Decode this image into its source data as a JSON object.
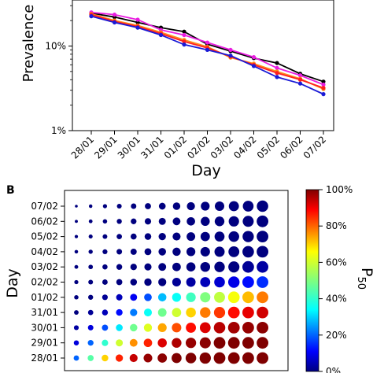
{
  "chart_data": [
    {
      "type": "line",
      "panel_label": "",
      "ylabel": "Prevalence",
      "xlabel": "Day",
      "yscale": "log",
      "ylim": [
        0.01,
        0.35
      ],
      "yticks": [
        "1%",
        "10%"
      ],
      "categories": [
        "28/01",
        "29/01",
        "30/01",
        "31/01",
        "01/02",
        "02/02",
        "03/02",
        "04/02",
        "05/02",
        "06/02",
        "07/02"
      ],
      "series": [
        {
          "color": "#000000",
          "values": [
            0.245,
            0.22,
            0.19,
            0.165,
            0.148,
            0.105,
            0.087,
            0.072,
            0.063,
            0.047,
            0.038
          ]
        },
        {
          "color": "#e91ee0",
          "values": [
            0.25,
            0.235,
            0.205,
            0.155,
            0.135,
            0.11,
            0.09,
            0.074,
            0.055,
            0.045,
            0.035
          ]
        },
        {
          "color": "#ff8c1a",
          "values": [
            0.24,
            0.2,
            0.175,
            0.145,
            0.118,
            0.098,
            0.073,
            0.062,
            0.05,
            0.041,
            0.031
          ]
        },
        {
          "color": "#ff2020",
          "values": [
            0.235,
            0.195,
            0.17,
            0.14,
            0.113,
            0.095,
            0.075,
            0.06,
            0.048,
            0.04,
            0.032
          ]
        },
        {
          "color": "#1a1ad6",
          "values": [
            0.225,
            0.19,
            0.165,
            0.135,
            0.104,
            0.09,
            0.077,
            0.058,
            0.043,
            0.036,
            0.027
          ]
        }
      ]
    },
    {
      "type": "heatmap",
      "panel_label": "B",
      "ylabel": "Day",
      "rows": [
        "07/02",
        "06/02",
        "05/02",
        "04/02",
        "03/02",
        "02/02",
        "01/02",
        "31/01",
        "30/01",
        "29/01",
        "28/01"
      ],
      "colorbar_label": "P50",
      "colorbar_ticks": [
        "0%",
        "20%",
        "40%",
        "60%",
        "80%",
        "100%"
      ],
      "values": [
        [
          0,
          0,
          0,
          0,
          0,
          0,
          0,
          0,
          0,
          0,
          0,
          0,
          0,
          0,
          0,
          0,
          0,
          0,
          0,
          0,
          0,
          0,
          0,
          0,
          0,
          0,
          0,
          0,
          0,
          0,
          0,
          0,
          0,
          0,
          0,
          0,
          0,
          0,
          0
        ],
        [
          0,
          0,
          0,
          0,
          0,
          0,
          0,
          0,
          0,
          0,
          0,
          0,
          0,
          0,
          0,
          0,
          0,
          0,
          0,
          0,
          0,
          0,
          0,
          0,
          0,
          0,
          0,
          0,
          0,
          0,
          0,
          0,
          0,
          0,
          0,
          0,
          0,
          0,
          0
        ],
        [
          0,
          0,
          0,
          0,
          0,
          0,
          0,
          0,
          0,
          0,
          0,
          0,
          0,
          0,
          0,
          0,
          0,
          0,
          0,
          0,
          0,
          0,
          0,
          0,
          0,
          0,
          0,
          0,
          0,
          0,
          0,
          0,
          0,
          0,
          0,
          0,
          0,
          0,
          0
        ],
        [
          0,
          0,
          0,
          0,
          0,
          0,
          0,
          0,
          0,
          0,
          0,
          0,
          0,
          0,
          0,
          0,
          0,
          0,
          0,
          0,
          0,
          0,
          0,
          0,
          0,
          0,
          0,
          0,
          0,
          0,
          0,
          0,
          0,
          0,
          0,
          0,
          0,
          0,
          0
        ],
        [
          0,
          0,
          0,
          0,
          0,
          0,
          0,
          0,
          0,
          0,
          0,
          0,
          0,
          0,
          0,
          0,
          0,
          0,
          0.02,
          0.03,
          0.04,
          0.05,
          0.06,
          0.08,
          0.1,
          0.12,
          0.14,
          0.16,
          0.18,
          0.2,
          0.22,
          0.24,
          0.26,
          0.28,
          0.3,
          0.32,
          0.34,
          0.36,
          0.38
        ],
        [
          0,
          0,
          0,
          0,
          0,
          0,
          0,
          0,
          0,
          0,
          0,
          0,
          0,
          0.02,
          0.03,
          0.05,
          0.07,
          0.09,
          0.12,
          0.15,
          0.2,
          0.25,
          0.3,
          0.35,
          0.4,
          0.45,
          0.5,
          0.55,
          0.58,
          0.6,
          0.62,
          0.64,
          0.66,
          0.68,
          0.7,
          0.72,
          0.74,
          0.76,
          0.78
        ],
        [
          0,
          0,
          0,
          0,
          0,
          0,
          0,
          0,
          0.02,
          0.05,
          0.1,
          0.18,
          0.28,
          0.35,
          0.42,
          0.5,
          0.58,
          0.65,
          0.72,
          0.78,
          0.82,
          0.86,
          0.88,
          0.9,
          0.92,
          0.94,
          0.95,
          0.96,
          0.97,
          0.98,
          0.98,
          0.99,
          0.99,
          0.99,
          1,
          1,
          1,
          1,
          1
        ],
        [
          0,
          0,
          0,
          0,
          0,
          0,
          0,
          0.02,
          0.05,
          0.12,
          0.22,
          0.35,
          0.48,
          0.6,
          0.7,
          0.78,
          0.84,
          0.88,
          0.91,
          0.93,
          0.95,
          0.96,
          0.97,
          0.98,
          0.98,
          0.99,
          0.99,
          0.99,
          1,
          1,
          1,
          1,
          1,
          1,
          1,
          1,
          1,
          1,
          1
        ],
        [
          0,
          0,
          0,
          0,
          0,
          0,
          0.03,
          0.08,
          0.18,
          0.32,
          0.48,
          0.62,
          0.74,
          0.82,
          0.88,
          0.92,
          0.95,
          0.97,
          0.98,
          0.99,
          0.99,
          1,
          1,
          1,
          1,
          1,
          1,
          1,
          1,
          1,
          1,
          1,
          1,
          1,
          1,
          1,
          1,
          1,
          1
        ],
        [
          0,
          0,
          0,
          0,
          0,
          0.02,
          0.08,
          0.2,
          0.4,
          0.6,
          0.76,
          0.86,
          0.92,
          0.96,
          0.98,
          0.99,
          1,
          1,
          1,
          1,
          1,
          1,
          1,
          1,
          1,
          1,
          1,
          1,
          1,
          1,
          1,
          1,
          1,
          1,
          1,
          1,
          1,
          1,
          1
        ],
        [
          0,
          0,
          0,
          0,
          0.02,
          0.06,
          0.2,
          0.45,
          0.7,
          0.86,
          0.94,
          0.98,
          0.99,
          1,
          1,
          1,
          1,
          1,
          1,
          1,
          1,
          1,
          1,
          1,
          1,
          1,
          1,
          1,
          1,
          1,
          1,
          1,
          1,
          1,
          1,
          1,
          1,
          1,
          1
        ]
      ],
      "visible_columns": 14,
      "column_offset": 6
    }
  ]
}
